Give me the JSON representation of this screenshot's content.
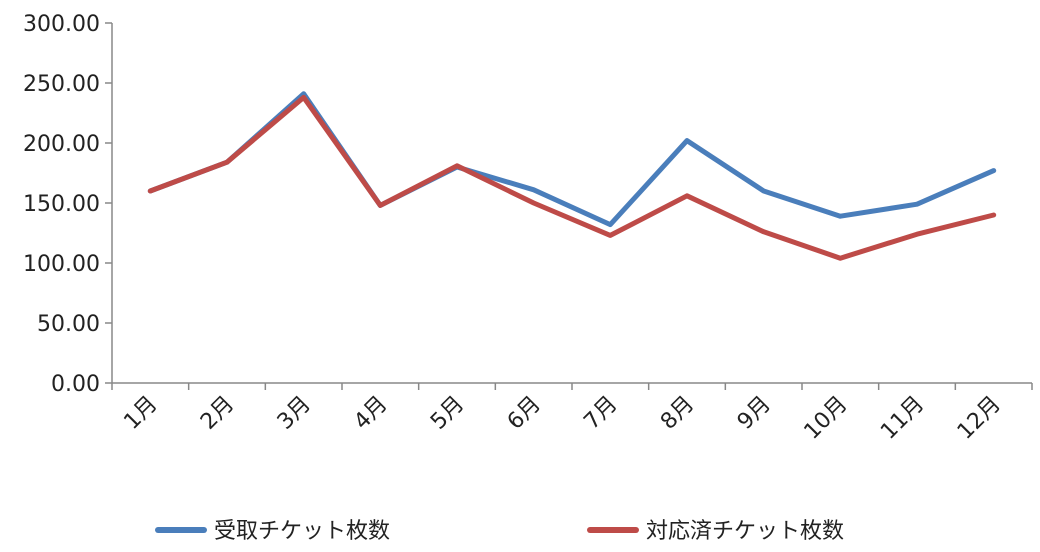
{
  "chart_data": {
    "type": "line",
    "categories": [
      "1月",
      "2月",
      "3月",
      "4月",
      "5月",
      "6月",
      "7月",
      "8月",
      "9月",
      "10月",
      "11月",
      "12月"
    ],
    "series": [
      {
        "name": "受取チケット枚数",
        "color": "#4A7EBB",
        "values": [
          160,
          184,
          241,
          148,
          180,
          161,
          132,
          202,
          160,
          139,
          149,
          177
        ]
      },
      {
        "name": "対応済チケット枚数",
        "color": "#BE4B48",
        "values": [
          160,
          184,
          238,
          148,
          181,
          150,
          123,
          156,
          126,
          104,
          124,
          140
        ]
      }
    ],
    "ylim": [
      0,
      300
    ],
    "yticks": [
      "0.00",
      "50.00",
      "100.00",
      "150.00",
      "200.00",
      "250.00",
      "300.00"
    ],
    "grid": false,
    "legend_position": "bottom"
  }
}
